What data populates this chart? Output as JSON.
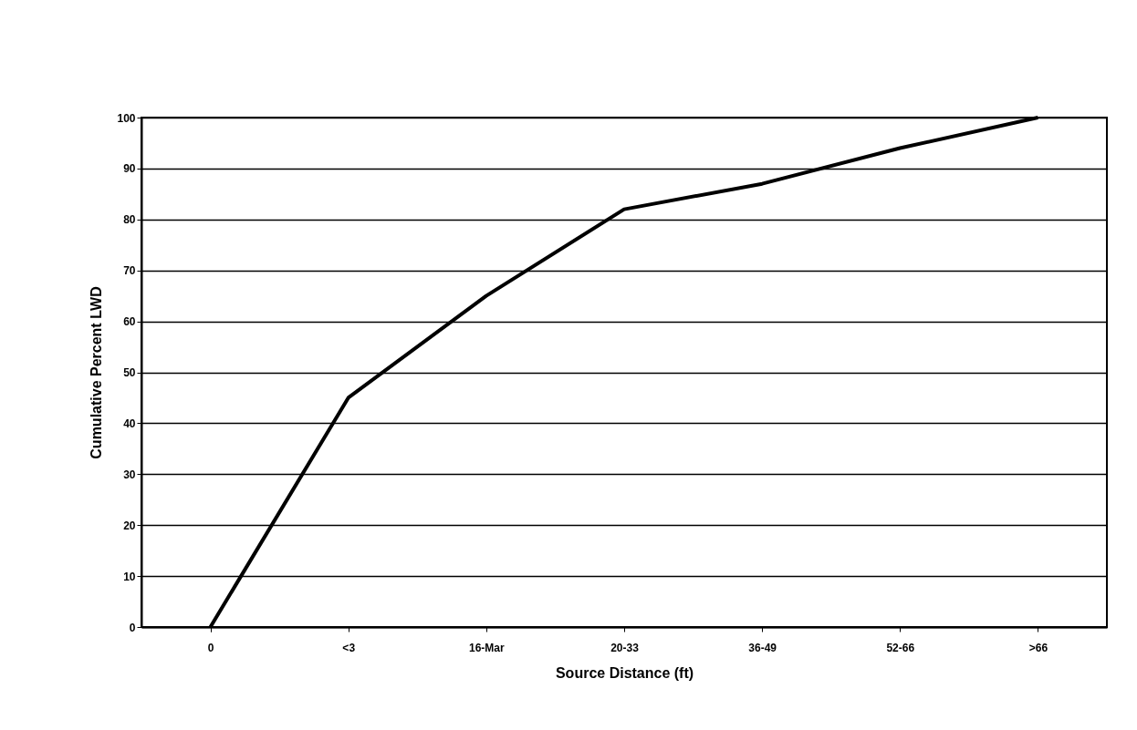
{
  "chart_data": {
    "type": "line",
    "xlabel": "Source Distance (ft)",
    "ylabel": "Cumulative Percent LWD",
    "categories": [
      "0",
      "<3",
      "16-Mar",
      "20-33",
      "36-49",
      "52-66",
      ">66"
    ],
    "series": [
      {
        "color": "#000000",
        "values": [
          0,
          45,
          65,
          82,
          87,
          94,
          100
        ]
      }
    ],
    "ylim": [
      0,
      100
    ],
    "yticks": [
      0,
      10,
      20,
      30,
      40,
      50,
      60,
      70,
      80,
      90,
      100
    ],
    "grid": "y",
    "marker": "none",
    "line_style": "solid"
  }
}
